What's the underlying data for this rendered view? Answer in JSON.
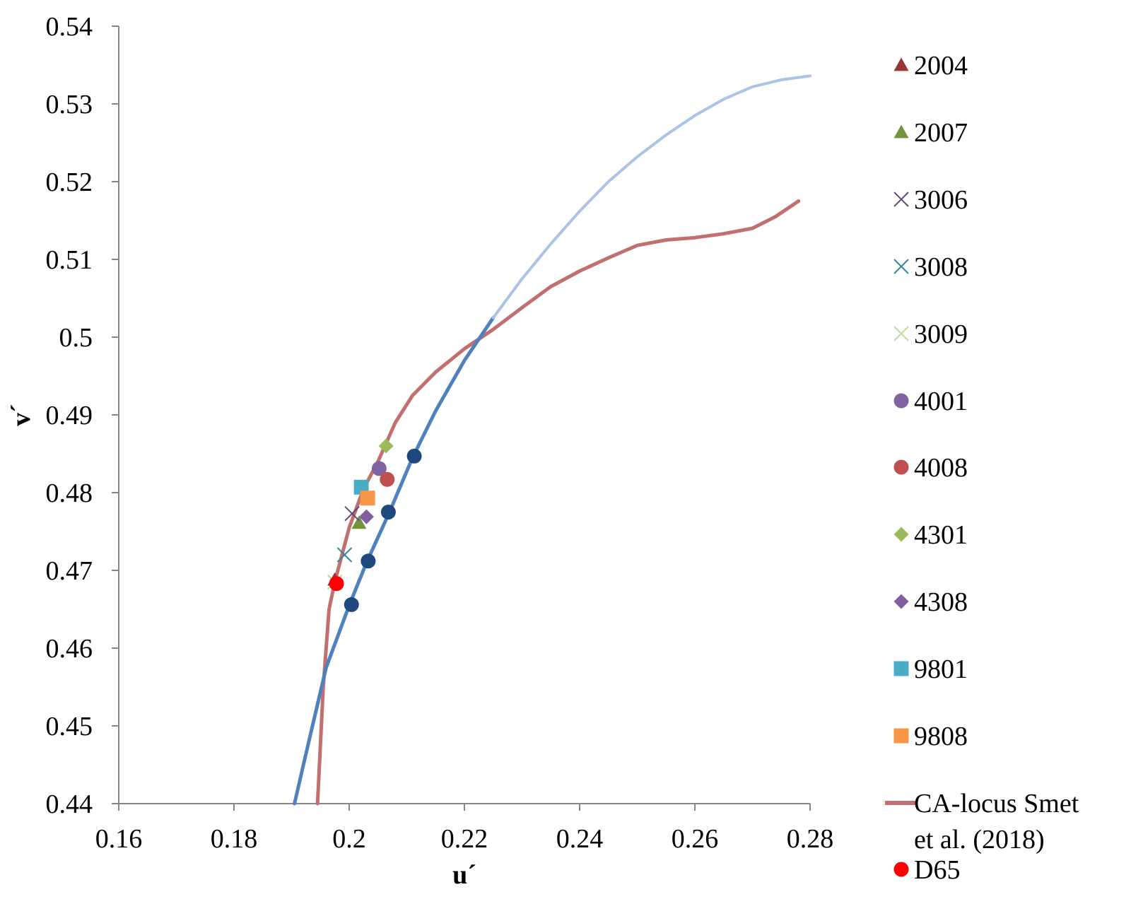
{
  "chart_data": {
    "type": "scatter",
    "title": "",
    "xlabel": "u´",
    "ylabel": "v´",
    "xlim": [
      0.16,
      0.28
    ],
    "ylim": [
      0.44,
      0.54
    ],
    "xticks": [
      "0.16",
      "0.18",
      "0.2",
      "0.22",
      "0.24",
      "0.26",
      "0.28"
    ],
    "yticks": [
      "0.44",
      "0.45",
      "0.46",
      "0.47",
      "0.48",
      "0.49",
      "0.5",
      "0.51",
      "0.52",
      "0.53",
      "0.54"
    ],
    "grid": false,
    "legend_position": "right",
    "series": [
      {
        "name": "2004",
        "marker": "triangle",
        "color": "#953735",
        "points": [
          [
            0.1975,
            0.4688
          ]
        ]
      },
      {
        "name": "2007",
        "marker": "triangle",
        "color": "#76923C",
        "points": [
          [
            0.2017,
            0.4761
          ]
        ]
      },
      {
        "name": "3006",
        "marker": "x",
        "color": "#5F497A",
        "points": [
          [
            0.2005,
            0.4773
          ]
        ]
      },
      {
        "name": "3008",
        "marker": "x",
        "color": "#31859C",
        "points": [
          [
            0.1992,
            0.472
          ]
        ]
      },
      {
        "name": "3009",
        "marker": "x",
        "color": "#C3D69B",
        "points": [
          [
            0.1975,
            0.4685
          ]
        ]
      },
      {
        "name": "4001",
        "marker": "circle",
        "color": "#8064A2",
        "points": [
          [
            0.2052,
            0.4831
          ]
        ]
      },
      {
        "name": "4008",
        "marker": "circle",
        "color": "#C0504D",
        "points": [
          [
            0.2066,
            0.4817
          ]
        ]
      },
      {
        "name": "4301",
        "marker": "diamond",
        "color": "#9BBB59",
        "points": [
          [
            0.2064,
            0.486
          ]
        ]
      },
      {
        "name": "4308",
        "marker": "diamond",
        "color": "#7F5FA0",
        "points": [
          [
            0.203,
            0.4769
          ]
        ]
      },
      {
        "name": "9801",
        "marker": "square",
        "color": "#4BACC6",
        "points": [
          [
            0.2021,
            0.4807
          ]
        ]
      },
      {
        "name": "9808",
        "marker": "square",
        "color": "#F79646",
        "points": [
          [
            0.2032,
            0.4793
          ]
        ]
      },
      {
        "name": "CA-locus Smet et al. (2018)",
        "marker": "line",
        "color": "#C0706E",
        "points": [
          [
            0.1945,
            0.44
          ],
          [
            0.1955,
            0.455
          ],
          [
            0.1965,
            0.465
          ],
          [
            0.1975,
            0.4685
          ],
          [
            0.2,
            0.4755
          ],
          [
            0.2025,
            0.4805
          ],
          [
            0.205,
            0.484
          ],
          [
            0.208,
            0.489
          ],
          [
            0.211,
            0.4925
          ],
          [
            0.215,
            0.4955
          ],
          [
            0.22,
            0.4985
          ],
          [
            0.225,
            0.501
          ],
          [
            0.23,
            0.5038
          ],
          [
            0.235,
            0.5065
          ],
          [
            0.24,
            0.5085
          ],
          [
            0.245,
            0.5102
          ],
          [
            0.25,
            0.5118
          ],
          [
            0.255,
            0.5125
          ],
          [
            0.26,
            0.5128
          ],
          [
            0.265,
            0.5133
          ],
          [
            0.27,
            0.514
          ],
          [
            0.274,
            0.5155
          ],
          [
            0.278,
            0.5175
          ]
        ]
      },
      {
        "name": "D65",
        "marker": "circle",
        "color": "#FF0000",
        "points": [
          [
            0.1978,
            0.4683
          ]
        ]
      },
      {
        "name": "",
        "marker": "circle",
        "color": "#1F497D",
        "in_legend": false,
        "points": [
          [
            0.2004,
            0.4656
          ],
          [
            0.2033,
            0.4712
          ],
          [
            0.2068,
            0.4775
          ],
          [
            0.2113,
            0.4847
          ]
        ]
      },
      {
        "name": "",
        "marker": "line",
        "color": "#4F81BD",
        "in_legend": false,
        "points": [
          [
            0.1905,
            0.44
          ],
          [
            0.193,
            0.448
          ],
          [
            0.196,
            0.4575
          ],
          [
            0.2,
            0.4655
          ],
          [
            0.203,
            0.471
          ],
          [
            0.207,
            0.4775
          ],
          [
            0.211,
            0.4845
          ],
          [
            0.215,
            0.4905
          ],
          [
            0.22,
            0.497
          ],
          [
            0.225,
            0.5025
          ]
        ]
      },
      {
        "name": "",
        "marker": "line",
        "color": "#A9C4E4",
        "in_legend": false,
        "points": [
          [
            0.225,
            0.5025
          ],
          [
            0.23,
            0.5075
          ],
          [
            0.235,
            0.512
          ],
          [
            0.24,
            0.5162
          ],
          [
            0.245,
            0.52
          ],
          [
            0.25,
            0.5232
          ],
          [
            0.255,
            0.526
          ],
          [
            0.26,
            0.5285
          ],
          [
            0.265,
            0.5306
          ],
          [
            0.27,
            0.5322
          ],
          [
            0.275,
            0.5331
          ],
          [
            0.28,
            0.5336
          ]
        ]
      }
    ]
  }
}
